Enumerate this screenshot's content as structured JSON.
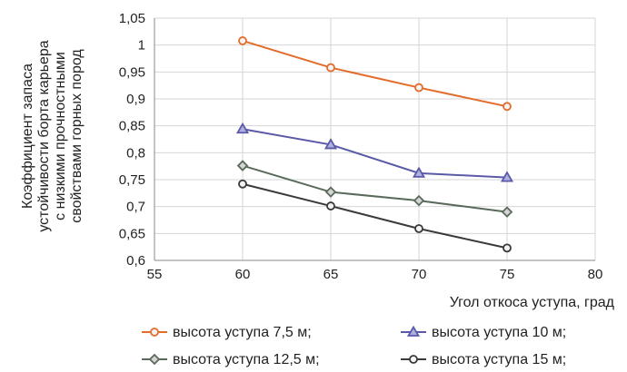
{
  "chart_data": {
    "type": "line",
    "ylabel_lines": [
      "Коэффициент запаса",
      "устойчивости борта карьера",
      "с низкими прочностными",
      "свойствами горных пород"
    ],
    "xlabel": "Угол откоса уступа, град",
    "xlim": [
      55,
      80
    ],
    "ylim": [
      0.6,
      1.05
    ],
    "x_ticks": [
      "55",
      "60",
      "65",
      "70",
      "75",
      "80"
    ],
    "y_ticks": [
      "0,6",
      "0,65",
      "0,7",
      "0,75",
      "0,8",
      "0,85",
      "0,9",
      "0,95",
      "1",
      "1,05"
    ],
    "grid": true,
    "legend_position": "bottom",
    "series": [
      {
        "name": "высота уступа 7,5 м;",
        "color": "#e36c2a",
        "marker": "circle",
        "x": [
          60,
          65,
          70,
          75
        ],
        "values": [
          1.008,
          0.958,
          0.921,
          0.886
        ]
      },
      {
        "name": "высота уступа 10 м;",
        "color": "#5a5aa8",
        "marker": "triangle",
        "x": [
          60,
          65,
          70,
          75
        ],
        "values": [
          0.844,
          0.815,
          0.762,
          0.754
        ]
      },
      {
        "name": "высота уступа 12,5 м;",
        "color": "#5a6a5a",
        "marker": "diamond",
        "x": [
          60,
          65,
          70,
          75
        ],
        "values": [
          0.776,
          0.727,
          0.711,
          0.69
        ]
      },
      {
        "name": "высота уступа 15 м;",
        "color": "#3a3a3a",
        "marker": "circle",
        "x": [
          60,
          65,
          70,
          75
        ],
        "values": [
          0.742,
          0.701,
          0.659,
          0.623
        ]
      }
    ]
  }
}
